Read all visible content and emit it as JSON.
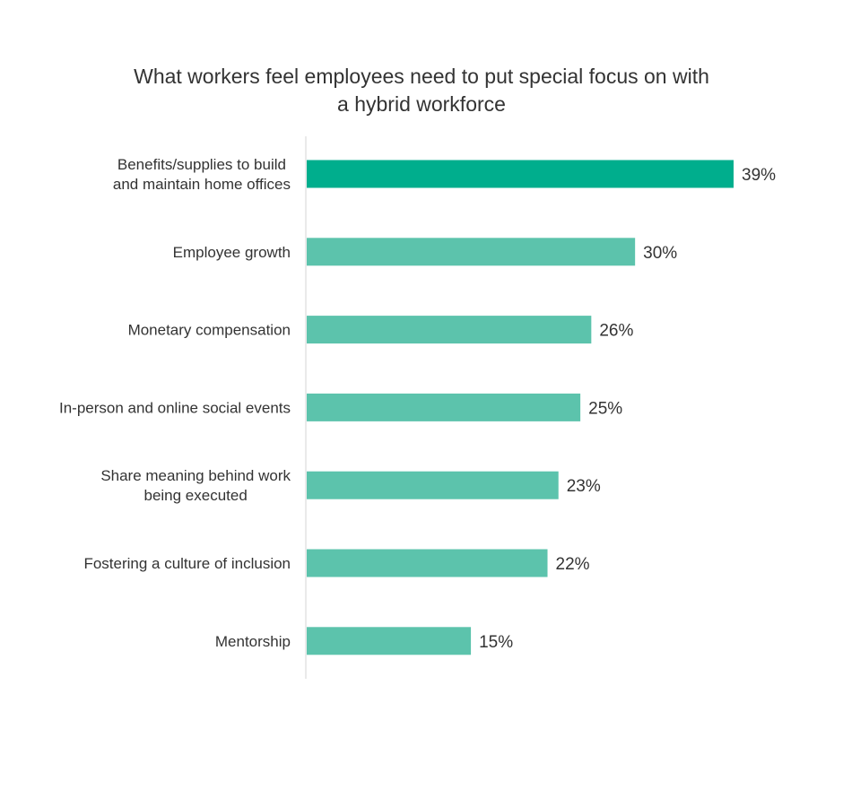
{
  "chart_data": {
    "type": "bar",
    "orientation": "horizontal",
    "title_lines": [
      "What workers feel employees need to put special focus on with",
      "a hybrid workforce"
    ],
    "categories": [
      [
        "Benefits/supplies to build",
        "and maintain home offices"
      ],
      [
        "Employee growth"
      ],
      [
        "Monetary compensation"
      ],
      [
        "In-person and online social events"
      ],
      [
        "Share meaning behind work",
        "being executed"
      ],
      [
        "Fostering a culture of inclusion"
      ],
      [
        "Mentorship"
      ]
    ],
    "values": [
      39,
      30,
      26,
      25,
      23,
      22,
      15
    ],
    "value_labels": [
      "39%",
      "30%",
      "26%",
      "25%",
      "23%",
      "22%",
      "15%"
    ],
    "xlim": [
      0,
      45
    ],
    "grid": false,
    "legend": "none",
    "colors": {
      "highlight": "#00AE8D",
      "bar": "#5CC3AC",
      "axis": "#D5D5D5",
      "text": "#333333"
    },
    "highlight_index": 0
  }
}
